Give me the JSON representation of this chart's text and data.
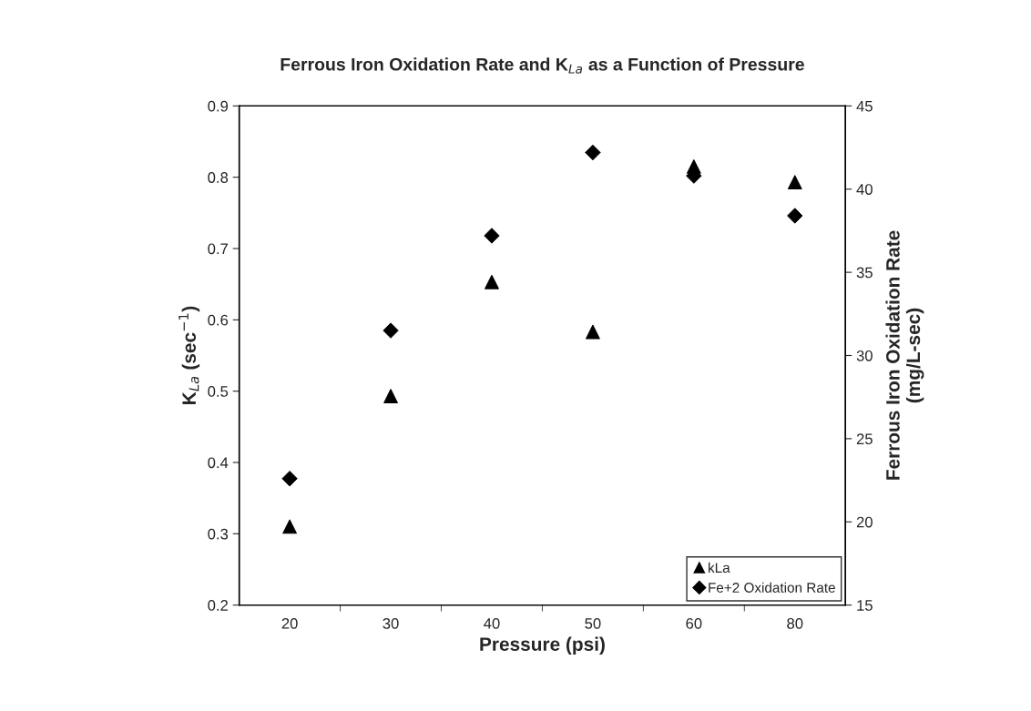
{
  "chart_data": {
    "type": "scatter",
    "title": "Ferrous Iron Oxidation Rate and K$_{La}$ as a Function of Pressure",
    "xlabel": "Pressure (psi)",
    "ylabel": "K$_{La}$ (sec$^{−1}$)",
    "y2label": "Ferrous Iron Oxidation Rate\n(mg/L-sec)",
    "categories": [
      "20",
      "30",
      "40",
      "50",
      "60",
      "80"
    ],
    "series": [
      {
        "name": "kLa",
        "color": "#000000",
        "marker": "triangle",
        "values": [
          0.31,
          0.493,
          0.653,
          0.583,
          0.815,
          0.793
        ]
      },
      {
        "name": "Fe+2 Oxidation Rate",
        "color": "#000000",
        "marker": "diamond",
        "axis": "y2",
        "values": [
          22.6,
          31.5,
          37.2,
          42.2,
          40.8,
          38.4
        ]
      }
    ],
    "ylim": [
      0.2,
      0.9
    ],
    "yticks": [
      {
        "value": 0.2,
        "label": "0.2"
      },
      {
        "value": 0.3,
        "label": "0.3"
      },
      {
        "value": 0.4,
        "label": "0.4"
      },
      {
        "value": 0.5,
        "label": "0.5"
      },
      {
        "value": 0.6,
        "label": "0.6"
      },
      {
        "value": 0.7,
        "label": "0.7"
      },
      {
        "value": 0.8,
        "label": "0.8"
      },
      {
        "value": 0.9,
        "label": "0.9"
      }
    ],
    "y2lim": [
      15,
      45
    ],
    "y2ticks": [
      15,
      20,
      25,
      30,
      35,
      40,
      45
    ],
    "legend": "bottom right",
    "grid": false
  }
}
